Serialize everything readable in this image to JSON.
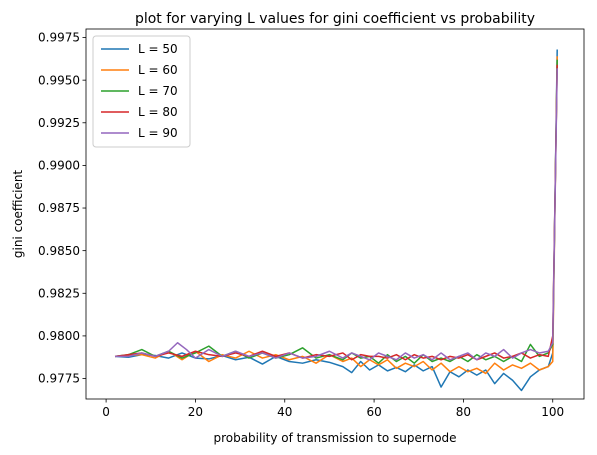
{
  "chart_data": {
    "type": "line",
    "title": "plot for varying L values for gini coefficient vs probability",
    "xlabel": "probability of transmission to supernode",
    "ylabel": "gini coefficient",
    "xlim": [
      -4.5,
      107
    ],
    "ylim": [
      0.9763,
      0.998
    ],
    "xticks": [
      0,
      20,
      40,
      60,
      80,
      100
    ],
    "xtick_labels": [
      "0",
      "20",
      "40",
      "60",
      "80",
      "100"
    ],
    "yticks": [
      0.9775,
      0.98,
      0.9825,
      0.985,
      0.9875,
      0.99,
      0.9925,
      0.995,
      0.9975
    ],
    "ytick_labels": [
      "0.9775",
      "0.9800",
      "0.9825",
      "0.9850",
      "0.9875",
      "0.9900",
      "0.9925",
      "0.9950",
      "0.9975"
    ],
    "legend_position": "top-left",
    "grid": false,
    "series": [
      {
        "name": "L = 50",
        "color": "#1f77b4",
        "points": [
          [
            2,
            0.9788
          ],
          [
            5,
            0.97875
          ],
          [
            8,
            0.9789
          ],
          [
            11,
            0.97885
          ],
          [
            14,
            0.9787
          ],
          [
            17,
            0.979
          ],
          [
            20,
            0.9787
          ],
          [
            23,
            0.97865
          ],
          [
            26,
            0.97885
          ],
          [
            29,
            0.9786
          ],
          [
            32,
            0.97875
          ],
          [
            35,
            0.97835
          ],
          [
            38,
            0.9788
          ],
          [
            41,
            0.9785
          ],
          [
            44,
            0.9784
          ],
          [
            47,
            0.9786
          ],
          [
            50,
            0.97845
          ],
          [
            53,
            0.9782
          ],
          [
            55,
            0.97785
          ],
          [
            57,
            0.9785
          ],
          [
            59,
            0.978
          ],
          [
            61,
            0.9783
          ],
          [
            63,
            0.97795
          ],
          [
            65,
            0.97815
          ],
          [
            67,
            0.9779
          ],
          [
            69,
            0.9783
          ],
          [
            71,
            0.97795
          ],
          [
            73,
            0.9782
          ],
          [
            75,
            0.977
          ],
          [
            77,
            0.9779
          ],
          [
            79,
            0.9776
          ],
          [
            81,
            0.978
          ],
          [
            83,
            0.9777
          ],
          [
            85,
            0.978
          ],
          [
            87,
            0.9772
          ],
          [
            89,
            0.9778
          ],
          [
            91,
            0.9774
          ],
          [
            93,
            0.9768
          ],
          [
            95,
            0.9776
          ],
          [
            97,
            0.978
          ],
          [
            99,
            0.9782
          ],
          [
            100,
            0.979
          ],
          [
            101,
            0.9968
          ]
        ]
      },
      {
        "name": "L = 60",
        "color": "#ff7f0e",
        "points": [
          [
            2,
            0.9788
          ],
          [
            5,
            0.97885
          ],
          [
            8,
            0.9789
          ],
          [
            11,
            0.9787
          ],
          [
            14,
            0.9791
          ],
          [
            17,
            0.9786
          ],
          [
            20,
            0.9791
          ],
          [
            23,
            0.9785
          ],
          [
            26,
            0.9789
          ],
          [
            29,
            0.9787
          ],
          [
            32,
            0.9791
          ],
          [
            35,
            0.9787
          ],
          [
            38,
            0.9789
          ],
          [
            41,
            0.9786
          ],
          [
            44,
            0.9788
          ],
          [
            47,
            0.9784
          ],
          [
            50,
            0.9789
          ],
          [
            53,
            0.9785
          ],
          [
            55,
            0.9787
          ],
          [
            57,
            0.9782
          ],
          [
            59,
            0.9786
          ],
          [
            61,
            0.9783
          ],
          [
            63,
            0.9786
          ],
          [
            65,
            0.9781
          ],
          [
            67,
            0.9784
          ],
          [
            69,
            0.9782
          ],
          [
            71,
            0.9785
          ],
          [
            73,
            0.978
          ],
          [
            75,
            0.9784
          ],
          [
            77,
            0.9779
          ],
          [
            79,
            0.9782
          ],
          [
            81,
            0.9779
          ],
          [
            83,
            0.9781
          ],
          [
            85,
            0.9778
          ],
          [
            87,
            0.9784
          ],
          [
            89,
            0.978
          ],
          [
            91,
            0.9783
          ],
          [
            93,
            0.9781
          ],
          [
            95,
            0.9784
          ],
          [
            97,
            0.978
          ],
          [
            99,
            0.9782
          ],
          [
            100,
            0.9785
          ],
          [
            101,
            0.9964
          ]
        ]
      },
      {
        "name": "L = 70",
        "color": "#2ca02c",
        "points": [
          [
            2,
            0.9788
          ],
          [
            5,
            0.9789
          ],
          [
            8,
            0.9792
          ],
          [
            11,
            0.9788
          ],
          [
            14,
            0.9791
          ],
          [
            17,
            0.9787
          ],
          [
            20,
            0.979
          ],
          [
            23,
            0.9794
          ],
          [
            26,
            0.9788
          ],
          [
            29,
            0.9791
          ],
          [
            32,
            0.9787
          ],
          [
            35,
            0.979
          ],
          [
            38,
            0.9787
          ],
          [
            41,
            0.9789
          ],
          [
            44,
            0.9793
          ],
          [
            47,
            0.9787
          ],
          [
            50,
            0.9789
          ],
          [
            53,
            0.9786
          ],
          [
            55,
            0.979
          ],
          [
            57,
            0.9787
          ],
          [
            59,
            0.9788
          ],
          [
            61,
            0.9784
          ],
          [
            63,
            0.9789
          ],
          [
            65,
            0.9785
          ],
          [
            67,
            0.9788
          ],
          [
            69,
            0.9784
          ],
          [
            71,
            0.9789
          ],
          [
            73,
            0.9785
          ],
          [
            75,
            0.9787
          ],
          [
            77,
            0.9785
          ],
          [
            79,
            0.9788
          ],
          [
            81,
            0.9785
          ],
          [
            83,
            0.9789
          ],
          [
            85,
            0.9786
          ],
          [
            87,
            0.9788
          ],
          [
            89,
            0.9785
          ],
          [
            91,
            0.9788
          ],
          [
            93,
            0.9785
          ],
          [
            95,
            0.9795
          ],
          [
            97,
            0.9788
          ],
          [
            99,
            0.979
          ],
          [
            100,
            0.9795
          ],
          [
            101,
            0.9962
          ]
        ]
      },
      {
        "name": "L = 80",
        "color": "#d62728",
        "points": [
          [
            2,
            0.9788
          ],
          [
            5,
            0.9789
          ],
          [
            8,
            0.979
          ],
          [
            11,
            0.9788
          ],
          [
            14,
            0.979
          ],
          [
            17,
            0.9788
          ],
          [
            20,
            0.9791
          ],
          [
            23,
            0.9789
          ],
          [
            26,
            0.9788
          ],
          [
            29,
            0.979
          ],
          [
            32,
            0.9788
          ],
          [
            35,
            0.9791
          ],
          [
            38,
            0.9788
          ],
          [
            41,
            0.979
          ],
          [
            44,
            0.9787
          ],
          [
            47,
            0.9789
          ],
          [
            50,
            0.9788
          ],
          [
            53,
            0.979
          ],
          [
            55,
            0.9786
          ],
          [
            57,
            0.9789
          ],
          [
            59,
            0.9788
          ],
          [
            61,
            0.9788
          ],
          [
            63,
            0.9787
          ],
          [
            65,
            0.9789
          ],
          [
            67,
            0.9786
          ],
          [
            69,
            0.9789
          ],
          [
            71,
            0.9787
          ],
          [
            73,
            0.9788
          ],
          [
            75,
            0.9786
          ],
          [
            77,
            0.9788
          ],
          [
            79,
            0.9787
          ],
          [
            81,
            0.9789
          ],
          [
            83,
            0.9786
          ],
          [
            85,
            0.9788
          ],
          [
            87,
            0.979
          ],
          [
            89,
            0.9787
          ],
          [
            91,
            0.9788
          ],
          [
            93,
            0.979
          ],
          [
            95,
            0.9787
          ],
          [
            97,
            0.9789
          ],
          [
            99,
            0.9788
          ],
          [
            100,
            0.98
          ],
          [
            101,
            0.9959
          ]
        ]
      },
      {
        "name": "L = 90",
        "color": "#9467bd",
        "points": [
          [
            2,
            0.9788
          ],
          [
            5,
            0.9788
          ],
          [
            8,
            0.979
          ],
          [
            11,
            0.9788
          ],
          [
            14,
            0.9791
          ],
          [
            16,
            0.9796
          ],
          [
            18,
            0.9792
          ],
          [
            20,
            0.9787
          ],
          [
            23,
            0.9792
          ],
          [
            26,
            0.9788
          ],
          [
            29,
            0.9791
          ],
          [
            32,
            0.9788
          ],
          [
            35,
            0.979
          ],
          [
            38,
            0.9787
          ],
          [
            41,
            0.979
          ],
          [
            44,
            0.9787
          ],
          [
            47,
            0.9788
          ],
          [
            50,
            0.9791
          ],
          [
            53,
            0.9787
          ],
          [
            55,
            0.979
          ],
          [
            57,
            0.9788
          ],
          [
            59,
            0.9786
          ],
          [
            61,
            0.979
          ],
          [
            63,
            0.9788
          ],
          [
            65,
            0.9786
          ],
          [
            67,
            0.979
          ],
          [
            69,
            0.9787
          ],
          [
            71,
            0.9789
          ],
          [
            73,
            0.9786
          ],
          [
            75,
            0.979
          ],
          [
            77,
            0.9786
          ],
          [
            79,
            0.9788
          ],
          [
            81,
            0.979
          ],
          [
            83,
            0.9786
          ],
          [
            85,
            0.979
          ],
          [
            87,
            0.9788
          ],
          [
            89,
            0.9792
          ],
          [
            91,
            0.9787
          ],
          [
            93,
            0.979
          ],
          [
            95,
            0.9792
          ],
          [
            97,
            0.979
          ],
          [
            99,
            0.9791
          ],
          [
            100,
            0.9796
          ],
          [
            101,
            0.9957
          ]
        ]
      }
    ]
  }
}
